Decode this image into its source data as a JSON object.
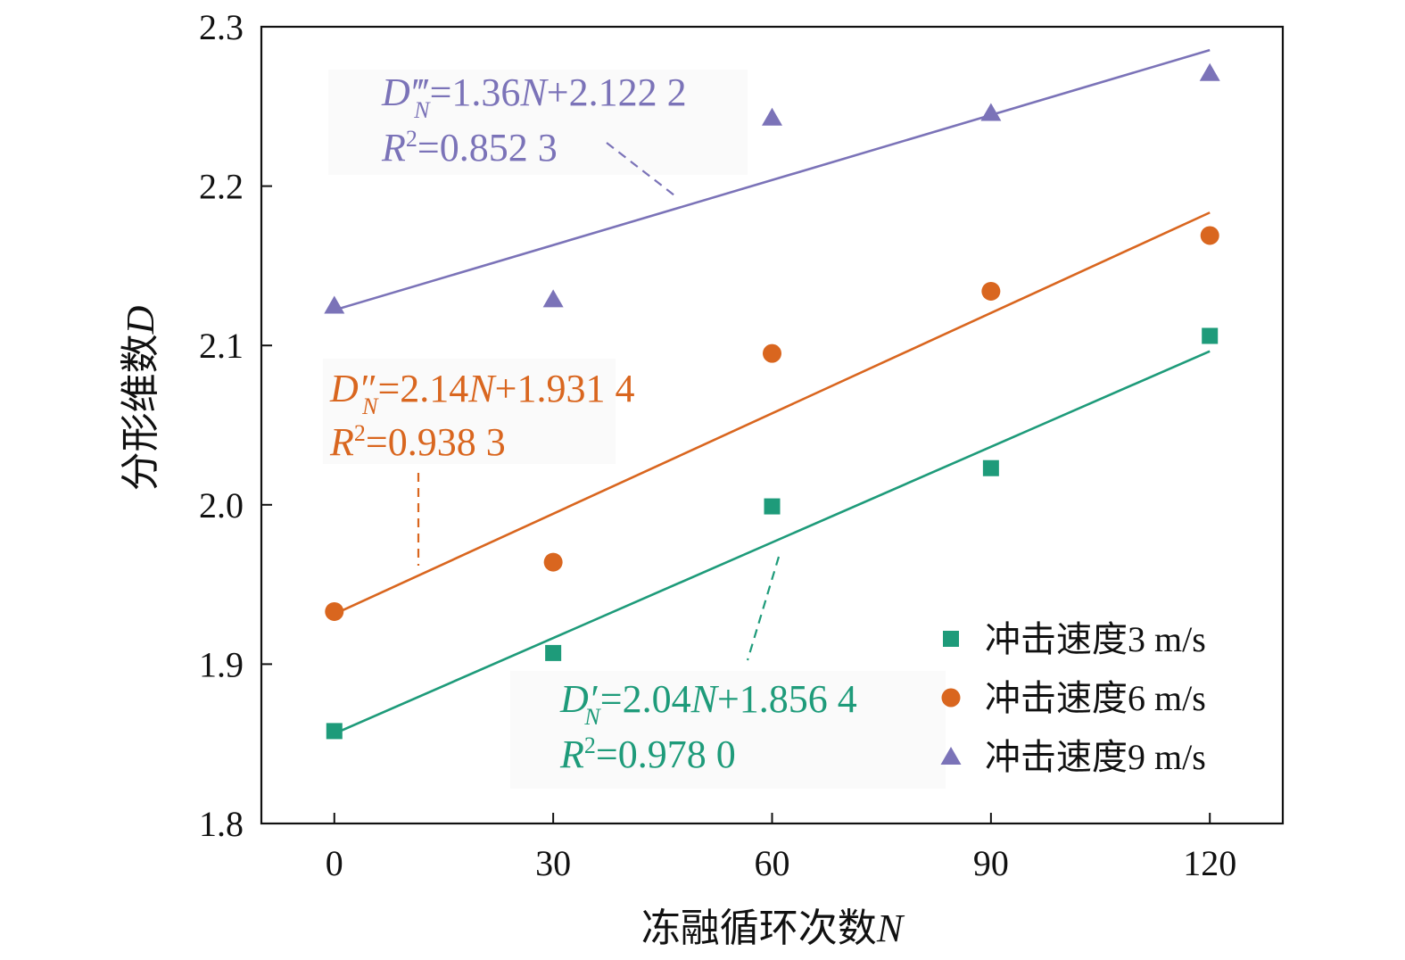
{
  "chart_data": {
    "type": "scatter",
    "xlabel_text": "冻融循环次数",
    "xlabel_var": "N",
    "ylabel_text": "分形维数",
    "ylabel_var": "D",
    "x": [
      0,
      30,
      60,
      90,
      120
    ],
    "xticks": [
      "0",
      "30",
      "60",
      "90",
      "120"
    ],
    "xlim": [
      -10,
      130
    ],
    "yticks": [
      "1.8",
      "1.9",
      "2.0",
      "2.1",
      "2.2",
      "2.3"
    ],
    "ylim": [
      1.8,
      2.3
    ],
    "legend_position": "bottom-right",
    "series": [
      {
        "key": "v3",
        "name": "冲击速度3 m/s",
        "marker": "square",
        "color": "#1e9b7a",
        "values": [
          1.858,
          1.907,
          1.999,
          2.023,
          2.106
        ],
        "fit": {
          "slope_per_x": 0.002,
          "intercept": 1.8564,
          "x_range": [
            0,
            120
          ]
        },
        "equation": {
          "d": "D",
          "prime": "′",
          "sub": "N",
          "rhs": "=2.04",
          "n": "N",
          "const": "+1.856 4",
          "r": "R",
          "sup": "2",
          "r2": "=0.978 0"
        }
      },
      {
        "key": "v6",
        "name": "冲击速度6 m/s",
        "marker": "circle",
        "color": "#d9661f",
        "values": [
          1.933,
          1.964,
          2.095,
          2.134,
          2.169
        ],
        "fit": {
          "slope_per_x": 0.0021,
          "intercept": 1.9314,
          "x_range": [
            0,
            120
          ]
        },
        "equation": {
          "d": "D",
          "prime": "″",
          "sub": "N",
          "rhs": "=2.14",
          "n": "N",
          "const": "+1.931 4",
          "r": "R",
          "sup": "2",
          "r2": "=0.938 3"
        }
      },
      {
        "key": "v9",
        "name": "冲击速度9 m/s",
        "marker": "triangle",
        "color": "#7b73b8",
        "values": [
          2.125,
          2.129,
          2.243,
          2.246,
          2.271
        ],
        "fit": {
          "slope_per_x": 0.00136,
          "intercept": 2.1222,
          "x_range": [
            0,
            120
          ]
        },
        "equation": {
          "d": "D",
          "prime": "‴",
          "sub": "N",
          "rhs": "=1.36",
          "n": "N",
          "const": "+2.122 2",
          "r": "R",
          "sup": "2",
          "r2": "=0.852 3"
        }
      }
    ]
  }
}
